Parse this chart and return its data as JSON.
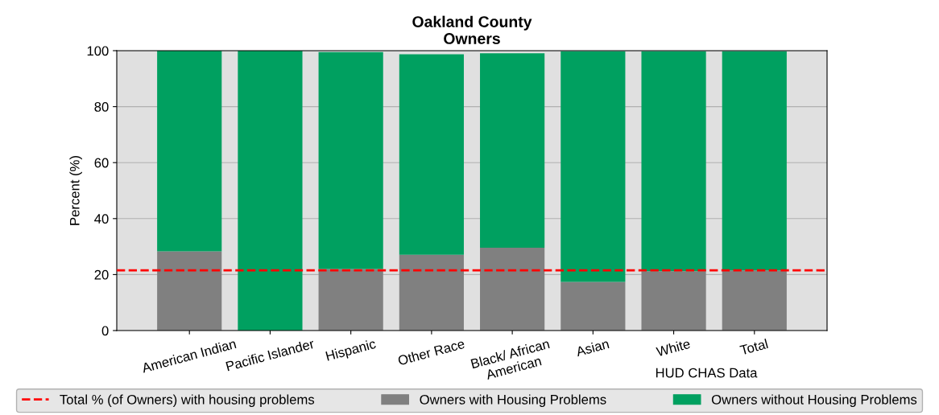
{
  "chart_data": {
    "type": "bar",
    "title": "Oakland County\nOwners",
    "ylabel": "Percent (%)",
    "categories": [
      "American Indian",
      "Pacific Islander",
      "Hispanic",
      "Other Race",
      "Black/ African\nAmerican",
      "Asian",
      "White",
      "Total"
    ],
    "stacked": true,
    "series": [
      {
        "name": "Owners with Housing Problems",
        "color": "#808080",
        "values": [
          28.3,
          0,
          22.0,
          27.1,
          29.6,
          17.4,
          21.2,
          21.5
        ]
      },
      {
        "name": "Owners without Housing Problems",
        "color": "#00a060",
        "values": [
          71.7,
          100,
          77.5,
          71.6,
          69.5,
          82.4,
          78.6,
          78.3
        ]
      }
    ],
    "ref_lines": [
      {
        "axis": "y",
        "value": 21.5,
        "label": "Total % (of Owners) with housing problems",
        "color": "#ff0000",
        "line_style": "dashed"
      }
    ],
    "ylim": [
      0,
      100
    ],
    "yticks": [
      0,
      20,
      40,
      60,
      80,
      100
    ],
    "grid": "y",
    "legend": "bottom",
    "annotations": [
      "HUD CHAS Data"
    ]
  }
}
